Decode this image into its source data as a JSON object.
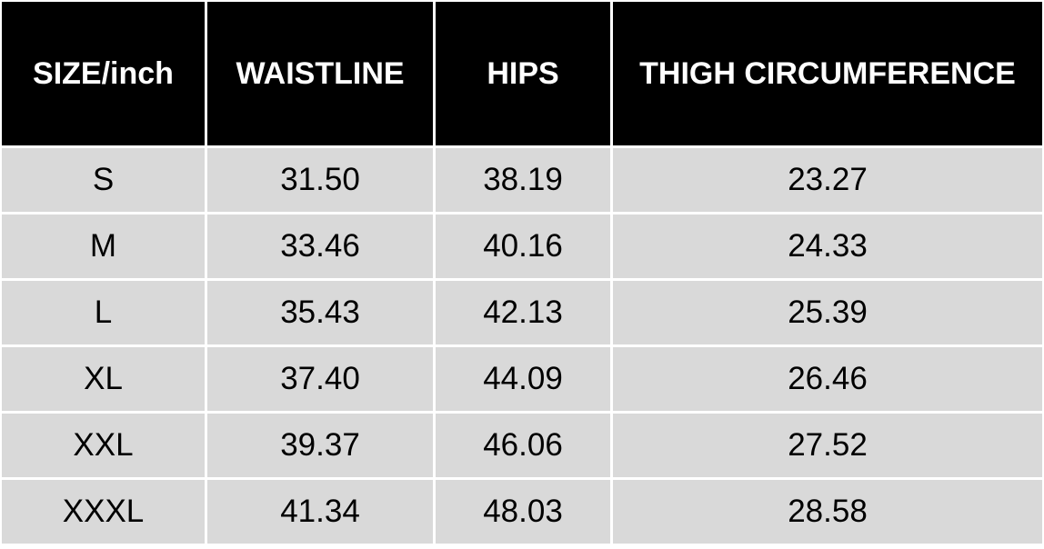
{
  "table": {
    "header": [
      "SIZE/inch",
      "WAISTLINE",
      "HIPS",
      "THIGH CIRCUMFERENCE"
    ],
    "rows": [
      [
        "S",
        "31.50",
        "38.19",
        "23.27"
      ],
      [
        "M",
        "33.46",
        "40.16",
        "24.33"
      ],
      [
        "L",
        "35.43",
        "42.13",
        "25.39"
      ],
      [
        "XL",
        "37.40",
        "44.09",
        "26.46"
      ],
      [
        "XXL",
        "39.37",
        "46.06",
        "27.52"
      ],
      [
        "XXXL",
        "41.34",
        "48.03",
        "28.58"
      ]
    ]
  }
}
